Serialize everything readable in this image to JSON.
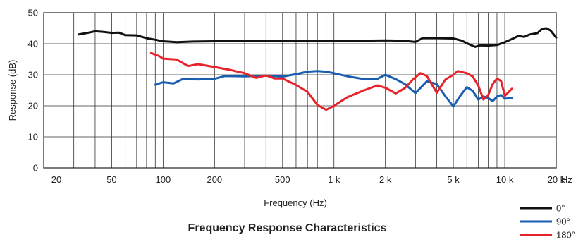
{
  "chart_data": {
    "type": "line",
    "title": "Frequency Response Characteristics",
    "xlabel": "Frequency (Hz)",
    "ylabel": "Response (dB)",
    "x_scale": "log",
    "xlim": [
      20,
      20000
    ],
    "ylim": [
      0,
      50
    ],
    "x_ticks": [
      20,
      50,
      100,
      200,
      500,
      1000,
      2000,
      5000,
      10000,
      20000
    ],
    "x_tick_labels": [
      "20",
      "50",
      "100",
      "200",
      "500",
      "1 k",
      "2 k",
      "5 k",
      "10 k",
      "20 k"
    ],
    "x_unit_label": "Hz",
    "y_ticks": [
      0,
      10,
      20,
      30,
      40,
      50
    ],
    "y_tick_labels": [
      "0",
      "10",
      "20",
      "30",
      "40",
      "50"
    ],
    "grid": true,
    "legend_position": "bottom-right",
    "series": [
      {
        "name": "0°",
        "color": "#111111",
        "points": [
          [
            32,
            43
          ],
          [
            36,
            43.5
          ],
          [
            40,
            44
          ],
          [
            45,
            43.8
          ],
          [
            50,
            43.5
          ],
          [
            55,
            43.6
          ],
          [
            60,
            42.8
          ],
          [
            70,
            42.7
          ],
          [
            80,
            41.8
          ],
          [
            90,
            41.3
          ],
          [
            100,
            40.8
          ],
          [
            120,
            40.5
          ],
          [
            150,
            40.7
          ],
          [
            200,
            40.8
          ],
          [
            300,
            40.9
          ],
          [
            400,
            41
          ],
          [
            500,
            40.9
          ],
          [
            700,
            40.9
          ],
          [
            1000,
            40.8
          ],
          [
            1500,
            41
          ],
          [
            2000,
            41.1
          ],
          [
            2500,
            41
          ],
          [
            3000,
            40.6
          ],
          [
            3300,
            41.8
          ],
          [
            4000,
            41.8
          ],
          [
            5000,
            41.7
          ],
          [
            5600,
            41
          ],
          [
            6200,
            39.8
          ],
          [
            6700,
            39
          ],
          [
            7200,
            39.5
          ],
          [
            8000,
            39.4
          ],
          [
            9000,
            39.6
          ],
          [
            10000,
            40.5
          ],
          [
            11000,
            41.5
          ],
          [
            12000,
            42.5
          ],
          [
            13000,
            42.2
          ],
          [
            14000,
            43
          ],
          [
            15500,
            43.4
          ],
          [
            16500,
            44.8
          ],
          [
            17500,
            45
          ],
          [
            18500,
            44.3
          ],
          [
            20000,
            42
          ]
        ]
      },
      {
        "name": "90°",
        "color": "#1a5eb0",
        "points": [
          [
            90,
            26.8
          ],
          [
            100,
            27.6
          ],
          [
            115,
            27.2
          ],
          [
            130,
            28.6
          ],
          [
            160,
            28.5
          ],
          [
            200,
            28.7
          ],
          [
            230,
            29.6
          ],
          [
            300,
            29.5
          ],
          [
            400,
            29.7
          ],
          [
            500,
            29.4
          ],
          [
            600,
            30.2
          ],
          [
            700,
            31
          ],
          [
            800,
            31.2
          ],
          [
            900,
            31
          ],
          [
            1000,
            30.5
          ],
          [
            1200,
            29.5
          ],
          [
            1500,
            28.6
          ],
          [
            1800,
            28.7
          ],
          [
            2000,
            30
          ],
          [
            2300,
            28.6
          ],
          [
            2600,
            27
          ],
          [
            3000,
            24.1
          ],
          [
            3500,
            27.9
          ],
          [
            4000,
            27
          ],
          [
            4500,
            23
          ],
          [
            5000,
            19.8
          ],
          [
            5500,
            23.3
          ],
          [
            6000,
            26
          ],
          [
            6500,
            24.8
          ],
          [
            7000,
            22
          ],
          [
            7500,
            23
          ],
          [
            8000,
            22.5
          ],
          [
            8500,
            21.5
          ],
          [
            9000,
            23
          ],
          [
            9500,
            23.5
          ],
          [
            10000,
            22.3
          ],
          [
            11000,
            22.5
          ]
        ]
      },
      {
        "name": "180°",
        "color": "#e8232b",
        "points": [
          [
            85,
            37
          ],
          [
            95,
            36
          ],
          [
            100,
            35.2
          ],
          [
            120,
            34.9
          ],
          [
            140,
            32.8
          ],
          [
            160,
            33.4
          ],
          [
            200,
            32.5
          ],
          [
            250,
            31.5
          ],
          [
            300,
            30.5
          ],
          [
            350,
            29
          ],
          [
            400,
            29.8
          ],
          [
            450,
            28.8
          ],
          [
            500,
            28.8
          ],
          [
            600,
            26.7
          ],
          [
            700,
            24.5
          ],
          [
            800,
            20.3
          ],
          [
            900,
            18.7
          ],
          [
            1000,
            20
          ],
          [
            1200,
            22.8
          ],
          [
            1500,
            25
          ],
          [
            1800,
            26.6
          ],
          [
            2000,
            25.8
          ],
          [
            2300,
            24
          ],
          [
            2600,
            25.7
          ],
          [
            2900,
            28.5
          ],
          [
            3200,
            30.5
          ],
          [
            3500,
            29.6
          ],
          [
            4000,
            24.2
          ],
          [
            4500,
            28.5
          ],
          [
            5000,
            30
          ],
          [
            5300,
            31.2
          ],
          [
            6000,
            30.5
          ],
          [
            6500,
            29.4
          ],
          [
            7000,
            26.5
          ],
          [
            7500,
            22
          ],
          [
            8000,
            23.5
          ],
          [
            8500,
            27
          ],
          [
            9000,
            28.8
          ],
          [
            9500,
            28
          ],
          [
            10000,
            23.2
          ],
          [
            11000,
            25.5
          ]
        ]
      }
    ]
  }
}
